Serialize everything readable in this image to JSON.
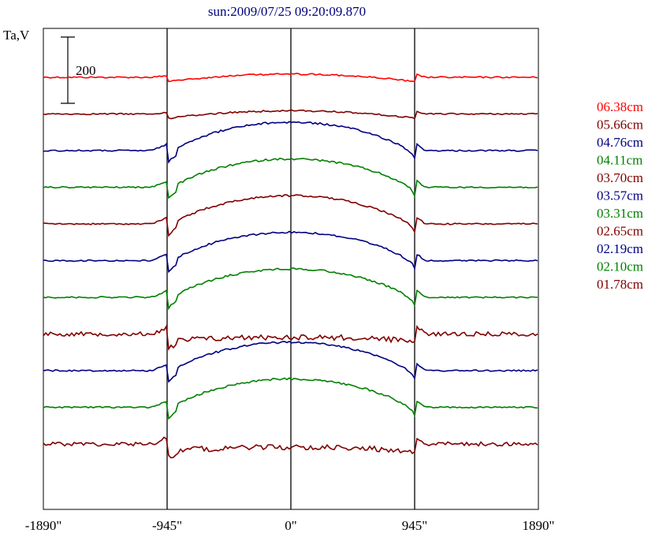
{
  "chart_data": {
    "type": "line",
    "title": "sun:2009/07/25 09:20:09.870",
    "ylabel": "Ta,V",
    "scale_bar_label": "200",
    "xlim": [
      -1890,
      1890
    ],
    "x_ticks": [
      {
        "value": -1890,
        "label": "-1890\""
      },
      {
        "value": -945,
        "label": "-945\""
      },
      {
        "value": 0,
        "label": "0\""
      },
      {
        "value": 945,
        "label": "945\""
      },
      {
        "value": 1890,
        "label": "1890\""
      }
    ],
    "vertical_lines_at": [
      -945,
      0,
      945
    ],
    "series": [
      {
        "name": "06.38cm",
        "color": "#ff0000",
        "style": "flat"
      },
      {
        "name": "05.66cm",
        "color": "#800000",
        "style": "flat"
      },
      {
        "name": "04.76cm",
        "color": "#000080",
        "style": "dome"
      },
      {
        "name": "04.11cm",
        "color": "#008000",
        "style": "dome"
      },
      {
        "name": "03.70cm",
        "color": "#800000",
        "style": "dome"
      },
      {
        "name": "03.57cm",
        "color": "#000080",
        "style": "dome"
      },
      {
        "name": "03.31cm",
        "color": "#008000",
        "style": "dome"
      },
      {
        "name": "02.65cm",
        "color": "#800000",
        "style": "noisy"
      },
      {
        "name": "02.19cm",
        "color": "#000080",
        "style": "dome"
      },
      {
        "name": "02.10cm",
        "color": "#008000",
        "style": "dome"
      },
      {
        "name": "01.78cm",
        "color": "#800000",
        "style": "noisy"
      }
    ]
  }
}
